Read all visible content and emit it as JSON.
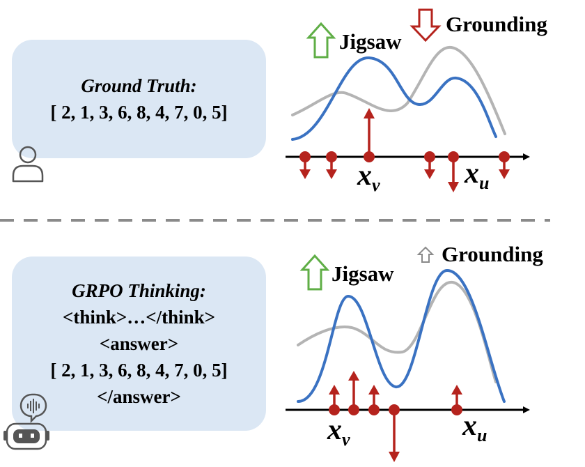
{
  "top_panel": {
    "title": "Ground Truth:",
    "line1": "[ 2, 1, 3, 6, 8, 4, 7, 0, 5]",
    "labels": {
      "jigsaw": "Jigsaw",
      "grounding": "Grounding",
      "xv_base": "x",
      "xv_sub": "v",
      "xu_base": "x",
      "xu_sub": "u"
    },
    "icons": {
      "jigsaw_arrow": "hollow-up-arrow-green",
      "grounding_arrow": "hollow-down-arrow-red",
      "agent": "person-icon"
    }
  },
  "bottom_panel": {
    "title": "GRPO Thinking:",
    "line1": "<think>…</think>",
    "line2": "<answer>",
    "line3": "[ 2, 1, 3, 6, 8, 4, 7, 0, 5]",
    "line4": "</answer>",
    "labels": {
      "jigsaw": "Jigsaw",
      "grounding": "Grounding",
      "xv_base": "x",
      "xv_sub": "v",
      "xu_base": "x",
      "xu_sub": "u"
    },
    "icons": {
      "jigsaw_arrow": "hollow-up-arrow-green",
      "grounding_arrow": "small-hollow-up-arrow-gray",
      "agent": "robot-icon"
    }
  },
  "colors": {
    "box": "#dbe7f4",
    "blue_curve": "#3a72c2",
    "gray_curve": "#b4b4b4",
    "arrow_red": "#b5231d",
    "green": "#5fae46",
    "divider": "#8a8a8a"
  }
}
